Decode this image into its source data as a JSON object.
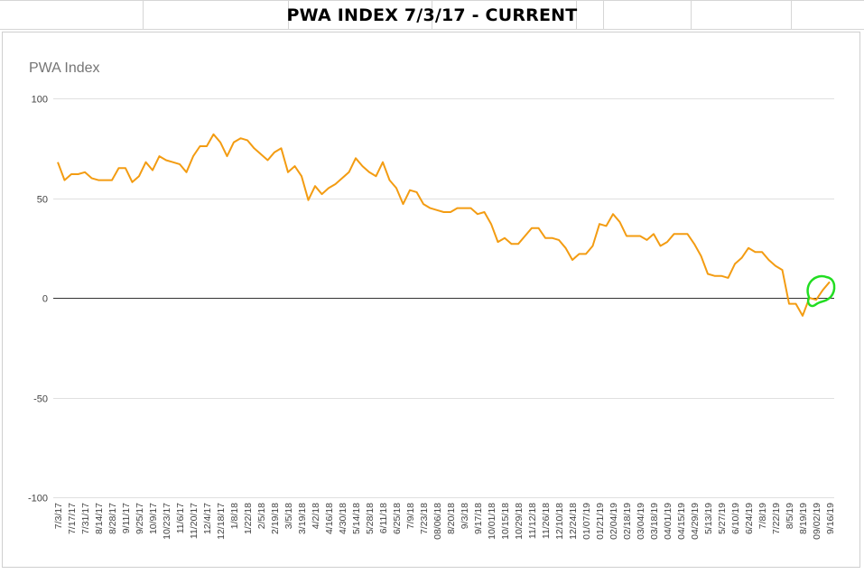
{
  "sheet": {
    "title": "PWA INDEX 7/3/17 - CURRENT"
  },
  "chart_data": {
    "type": "line",
    "title": "PWA Index",
    "xlabel": "",
    "ylabel": "",
    "ylim": [
      -100,
      100
    ],
    "yticks": [
      100,
      50,
      0,
      -50,
      -100
    ],
    "grid": true,
    "legend": "none",
    "series_color": "#f39c12",
    "annotation_color": "#22dd22",
    "x_tick_labels": [
      "7/3/17",
      "7/17/17",
      "7/31/17",
      "8/14/17",
      "8/28/17",
      "9/11/17",
      "9/25/17",
      "10/9/17",
      "10/23/17",
      "11/6/17",
      "11/20/17",
      "12/4/17",
      "12/18/17",
      "1/8/18",
      "1/22/18",
      "2/5/18",
      "2/19/18",
      "3/5/18",
      "3/19/18",
      "4/2/18",
      "4/16/18",
      "4/30/18",
      "5/14/18",
      "5/28/18",
      "6/11/18",
      "6/25/18",
      "7/9/18",
      "7/23/18",
      "08/06/18",
      "8/20/18",
      "9/3/18",
      "9/17/18",
      "10/01/18",
      "10/15/18",
      "10/29/18",
      "11/12/18",
      "11/26/18",
      "12/10/18",
      "12/24/18",
      "01/07/19",
      "01/21/19",
      "02/04/19",
      "02/18/19",
      "03/04/19",
      "03/18/19",
      "04/01/19",
      "04/15/19",
      "04/29/19",
      "5/13/19",
      "5/27/19",
      "6/10/19",
      "6/24/19",
      "7/8/19",
      "7/22/19",
      "8/5/19",
      "8/19/19",
      "09/02/19",
      "9/16/19"
    ],
    "series": [
      {
        "values": [
          68,
          59,
          62,
          62,
          63,
          60,
          59,
          59,
          59,
          65,
          65,
          58,
          61,
          68,
          64,
          71,
          69,
          68,
          67,
          63,
          71,
          76,
          76,
          82,
          78,
          71,
          78,
          80,
          79,
          75,
          72,
          69,
          73,
          75,
          63,
          66,
          61,
          49,
          56,
          52,
          55,
          57,
          60,
          63,
          70,
          66,
          63,
          61,
          68,
          59,
          55,
          47,
          54,
          53,
          47,
          45,
          44,
          43,
          43,
          45,
          45,
          45,
          42,
          43,
          37,
          28,
          30,
          27,
          27,
          31,
          35,
          35,
          30,
          30,
          29,
          25,
          19,
          22,
          22,
          26,
          37,
          36,
          42,
          38,
          31,
          31,
          31,
          29,
          32,
          26,
          28,
          32,
          32,
          32,
          27,
          21,
          12,
          11,
          11,
          10,
          17,
          20,
          25,
          23,
          23,
          19,
          16,
          14,
          -3,
          -3,
          -9,
          0,
          -1,
          4,
          8
        ]
      }
    ]
  }
}
